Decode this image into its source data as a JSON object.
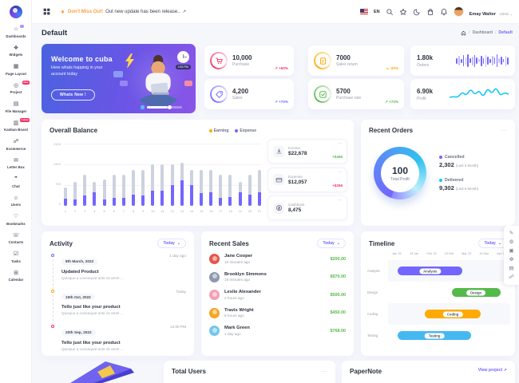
{
  "theme": {
    "primary": "#7366ff",
    "secondary": "#f73164",
    "success": "#54ba4a",
    "warning": "#ffaa05",
    "info": "#16c7f9",
    "background": "#f6f7fb"
  },
  "icons": {
    "chevron_down": "⌄",
    "menu_dots": "...",
    "slash": "/",
    "arrow_up_right": "↗"
  },
  "header": {
    "announcement_highlight": "Don't Miss Out!",
    "announcement_rest": "Out new update has been release..",
    "language": "EN",
    "cart_badge": "1",
    "notification_badge": "4",
    "user_name": "Emay Walter",
    "user_role": "Admin"
  },
  "page": {
    "title": "Default",
    "breadcrumb": [
      "Dashboard",
      "Default"
    ]
  },
  "sidebar": {
    "items": [
      {
        "label": "Dashboards",
        "icon": "home-icon",
        "glyph": "⌂",
        "badge_dot": true
      },
      {
        "label": "Widgets",
        "icon": "widgets-icon",
        "glyph": "❖"
      },
      {
        "label": "Page Layout",
        "icon": "layout-icon",
        "glyph": "▦"
      },
      {
        "label": "Project",
        "icon": "project-icon",
        "glyph": "◎",
        "badge": "New"
      },
      {
        "label": "File Manager",
        "icon": "folder-icon",
        "glyph": "▤"
      },
      {
        "label": "Kanban Board",
        "icon": "kanban-icon",
        "glyph": "▥",
        "badge": "Latest"
      },
      {
        "label": "Ecommerce",
        "icon": "cart-icon",
        "glyph": "☍"
      },
      {
        "label": "Letter Box",
        "icon": "mail-icon",
        "glyph": "✉"
      },
      {
        "label": "Chat",
        "icon": "chat-icon",
        "glyph": "❞"
      },
      {
        "label": "Users",
        "icon": "users-icon",
        "glyph": "☺"
      },
      {
        "label": "Bookmarks",
        "icon": "bookmark-icon",
        "glyph": "♡"
      },
      {
        "label": "Contacts",
        "icon": "contacts-icon",
        "glyph": "☏"
      },
      {
        "label": "Tasks",
        "icon": "tasks-icon",
        "glyph": "☑"
      },
      {
        "label": "Calendar",
        "icon": "calendar-icon",
        "glyph": "⊞"
      }
    ]
  },
  "welcome": {
    "title": "Welcome to cuba",
    "subtitle": "Here whats happing in your account today",
    "button_label": "Whats New !",
    "clock_label": "3:53 PM"
  },
  "stats": [
    {
      "value": "10,000",
      "label": "Purchase",
      "delta": "+50%",
      "direction": "up",
      "color": "#f73164",
      "icon": "cart"
    },
    {
      "value": "7000",
      "label": "Sales return",
      "delta": "-20%",
      "direction": "down",
      "color": "#ffaa05",
      "icon": "doc"
    },
    {
      "value": "4,200",
      "label": "Sales",
      "delta": "+70%",
      "direction": "up",
      "color": "#7366ff",
      "icon": "tag"
    },
    {
      "value": "5700",
      "label": "Purchase rate",
      "delta": "+70%",
      "direction": "up",
      "color": "#54ba4a",
      "icon": "check"
    }
  ],
  "wide_stats": [
    {
      "value": "1.80k",
      "label": "Orders"
    },
    {
      "value": "6.90k",
      "label": "Profit"
    }
  ],
  "overall_balance": {
    "title": "Overall Balance",
    "legend": [
      {
        "label": "Earning",
        "color": "#ffaa05"
      },
      {
        "label": "Expense",
        "color": "#7366ff"
      }
    ],
    "side_cards": [
      {
        "label": "Income",
        "value": "$22,678",
        "delta": "+$456",
        "delta_color": "#54ba4a",
        "icon": "download"
      },
      {
        "label": "Expense",
        "value": "$12,057",
        "delta": "+$256",
        "delta_color": "#f73164",
        "icon": "card"
      },
      {
        "label": "Cashback",
        "value": "8,475",
        "delta": "",
        "delta_color": "",
        "icon": "coin"
      }
    ]
  },
  "recent_orders": {
    "title": "Recent Orders",
    "center_value": "100",
    "center_label": "Total Profit",
    "legend": [
      {
        "label": "Cancelled",
        "value": "2,302",
        "note": "(Last 6 Month)",
        "color": "#7366ff"
      },
      {
        "label": "Delivered",
        "value": "9,302",
        "note": "(Last 6 Month)",
        "color": "#16c7f9"
      }
    ]
  },
  "activity": {
    "title": "Activity",
    "filter_label": "Today",
    "items": [
      {
        "date": "8th March, 2022",
        "when": "1 day ago",
        "title": "Updated Product",
        "desc": "Quisque a consequat ante sit amet ...",
        "color": "#7366ff"
      },
      {
        "date": "15th Oct, 2022",
        "when": "Today",
        "title": "Tello just like your product",
        "desc": "Quisque a consequat ante sit amet ...",
        "color": "#ffaa05"
      },
      {
        "date": "20th Sep, 2022",
        "when": "12:00 PM",
        "title": "Tello just like your product",
        "desc": "Quisque a consequat ante sit amet ...",
        "color": "#f73164"
      }
    ]
  },
  "recent_sales": {
    "title": "Recent Sales",
    "filter_label": "Today",
    "items": [
      {
        "name": "Jane Cooper",
        "time": "10 minutes ago",
        "amount": "$200.00",
        "avatar_color": "#e2574c"
      },
      {
        "name": "Brooklyn Simmons",
        "time": "19 minutes ago",
        "amount": "$970.00",
        "avatar_color": "#8d99ae"
      },
      {
        "name": "Leslie Alexander",
        "time": "2 hours ago",
        "amount": "$500.00",
        "avatar_color": "#f2a0b5"
      },
      {
        "name": "Travis Wright",
        "time": "8 hours ago",
        "amount": "$450.00",
        "avatar_color": "#f5a623"
      },
      {
        "name": "Mark Green",
        "time": "1 day ago",
        "amount": "$768.00",
        "avatar_color": "#74c7ec"
      }
    ]
  },
  "timeline_card": {
    "title": "Timeline",
    "filter_label": "Today"
  },
  "bottom": {
    "total_users_title": "Total Users",
    "papernote_title": "PaperNote",
    "papernote_link": "View project ↗"
  },
  "customizer": {
    "buttons": [
      {
        "name": "paint-icon",
        "glyph": "✎"
      },
      {
        "name": "gear-icon",
        "glyph": "⚙"
      },
      {
        "name": "box-icon",
        "glyph": "▣"
      },
      {
        "name": "settings-icon",
        "glyph": "☸"
      },
      {
        "name": "printer-icon",
        "glyph": "▤"
      },
      {
        "name": "cart-icon",
        "glyph": "☍"
      }
    ]
  },
  "chart_data": [
    {
      "id": "overall-balance",
      "type": "bar",
      "stacked": true,
      "title": "Overall Balance",
      "categories": [
        1,
        2,
        3,
        4,
        5,
        6,
        7,
        8,
        9,
        10,
        11,
        12,
        13,
        14,
        15,
        16,
        17,
        18,
        19,
        20,
        21
      ],
      "series": [
        {
          "name": "Expense",
          "color": "#7366ff",
          "values": [
            230,
            210,
            350,
            450,
            220,
            260,
            280,
            370,
            350,
            520,
            520,
            700,
            870,
            700,
            430,
            450,
            280,
            300,
            450,
            370,
            450
          ]
        },
        {
          "name": "Earning",
          "color": "#cdd2e0",
          "values": [
            390,
            590,
            700,
            370,
            680,
            790,
            770,
            830,
            850,
            880,
            880,
            700,
            580,
            500,
            770,
            750,
            770,
            750,
            350,
            680,
            750
          ]
        }
      ],
      "ylim": [
        0,
        2100
      ],
      "yticks": [
        2100,
        1400,
        700,
        0
      ],
      "legend_position": "top-right"
    },
    {
      "id": "recent-orders-donut",
      "type": "pie",
      "slices": [
        {
          "label": "Cancelled",
          "value": 2302,
          "color": "#7366ff"
        },
        {
          "label": "Delivered",
          "value": 9302,
          "color": "#16c7f9"
        }
      ],
      "center_value": "100",
      "center_label": "Total Profit"
    },
    {
      "id": "orders-sparkline",
      "type": "bar",
      "values": [
        7,
        12,
        5,
        14,
        9,
        16,
        6,
        11,
        15,
        8,
        4,
        13,
        7,
        15,
        10,
        5,
        12,
        8,
        16,
        6,
        10,
        4,
        13,
        9
      ]
    },
    {
      "id": "profit-line",
      "type": "line",
      "values": [
        16,
        15,
        16,
        9,
        14,
        5,
        13,
        7,
        16,
        4,
        12,
        3,
        14,
        10,
        12
      ]
    },
    {
      "id": "timeline-gantt",
      "type": "gantt",
      "x_labels": [
        "Jan '22",
        "15 Jan",
        "Feb '22",
        "15 Feb",
        "Mar '22",
        "15 Mar",
        "Apr '22"
      ],
      "rows": [
        {
          "label": "Analysis",
          "color": "#7366ff",
          "start": 0.08,
          "end": 0.61,
          "shaded": true
        },
        {
          "label": "Design",
          "color": "#54ba4a",
          "start": 0.52,
          "end": 0.92,
          "shaded": false
        },
        {
          "label": "Coding",
          "color": "#ffaa05",
          "start": 0.3,
          "end": 0.76,
          "shaded": true
        },
        {
          "label": "Testing",
          "color": "#45b8f2",
          "start": 0.08,
          "end": 0.68,
          "shaded": false
        }
      ]
    }
  ]
}
